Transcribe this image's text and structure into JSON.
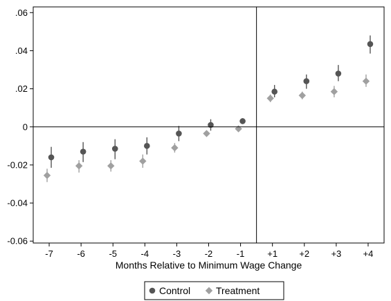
{
  "chart_data": {
    "type": "scatter",
    "title": "",
    "xlabel": "Months Relative to Minimum Wage Change",
    "ylabel": "",
    "categories": [
      "-7",
      "-6",
      "-5",
      "-4",
      "-3",
      "-2",
      "-1",
      "+1",
      "+2",
      "+3",
      "+4"
    ],
    "yticks": [
      ".06",
      ".04",
      ".02",
      "0",
      "-0.02",
      "-0.04",
      "-0.06"
    ],
    "ytick_values": [
      0.06,
      0.04,
      0.02,
      0,
      -0.02,
      -0.04,
      -0.06
    ],
    "ylim": [
      -0.061,
      0.063
    ],
    "grid": false,
    "reference_lines": {
      "horizontal_at_y": 0,
      "vertical_between": [
        "-1",
        "+1"
      ]
    },
    "legend_position": "bottom-center",
    "series": [
      {
        "name": "Control",
        "marker": "circle",
        "color": "#555555",
        "values": [
          -0.016,
          -0.013,
          -0.0115,
          -0.01,
          -0.0035,
          0.001,
          0.003,
          0.0185,
          0.024,
          0.028,
          0.0435
        ],
        "ci_low": [
          -0.0215,
          -0.0185,
          -0.017,
          -0.0145,
          -0.0075,
          -0.002,
          0.0015,
          0.0155,
          0.02,
          0.024,
          0.0385
        ],
        "ci_high": [
          -0.0105,
          -0.008,
          -0.0065,
          -0.0055,
          0.0005,
          0.004,
          0.0045,
          0.022,
          0.0275,
          0.0325,
          0.048
        ]
      },
      {
        "name": "Treatment",
        "marker": "diamond",
        "color": "#a0a0a0",
        "values": [
          -0.0255,
          -0.0205,
          -0.0205,
          -0.018,
          -0.011,
          -0.0035,
          -0.001,
          0.015,
          0.0165,
          0.0185,
          0.024
        ],
        "ci_low": [
          -0.029,
          -0.024,
          -0.0235,
          -0.0215,
          -0.0135,
          -0.005,
          -0.002,
          0.013,
          0.0145,
          0.0155,
          0.021
        ],
        "ci_high": [
          -0.022,
          -0.0175,
          -0.0175,
          -0.0145,
          -0.0085,
          -0.002,
          0.0,
          0.017,
          0.0185,
          0.0215,
          0.0275
        ]
      }
    ]
  }
}
